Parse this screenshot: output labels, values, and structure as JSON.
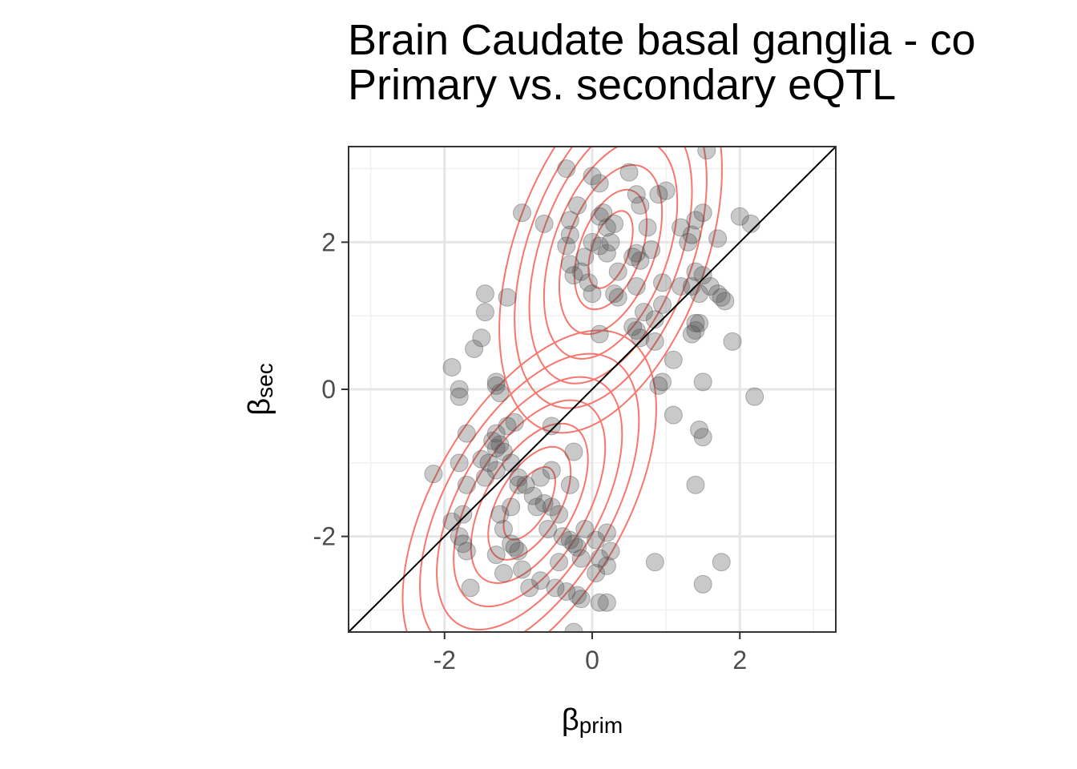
{
  "chart_data": {
    "type": "scatter",
    "title": [
      "Brain Caudate basal ganglia - co",
      "Primary vs. secondary eQTL"
    ],
    "xlabel": {
      "symbol": "β",
      "subscript": "prim"
    },
    "ylabel": {
      "symbol": "β",
      "subscript": "sec"
    },
    "xlim": [
      -3.3,
      3.3
    ],
    "ylim": [
      -3.3,
      3.3
    ],
    "xticks": [
      -2,
      0,
      2
    ],
    "yticks": [
      -2,
      0,
      2
    ],
    "xtick_labels": [
      "-2",
      "0",
      "2"
    ],
    "ytick_labels": [
      "-2",
      "0",
      "2"
    ],
    "grid": true,
    "reference_line": "y = x",
    "point_color": "#4d4d4d",
    "contour_color": "#f8766d",
    "density_contours": true,
    "points": [
      [
        -1.9,
        0.3
      ],
      [
        -1.8,
        0.0
      ],
      [
        -1.8,
        -0.1
      ],
      [
        -1.7,
        -0.6
      ],
      [
        -1.8,
        -1.0
      ],
      [
        -1.7,
        -1.3
      ],
      [
        -1.75,
        -1.7
      ],
      [
        -1.9,
        -1.8
      ],
      [
        -1.8,
        -2.0
      ],
      [
        -1.75,
        -2.1
      ],
      [
        -1.7,
        -2.2
      ],
      [
        -1.65,
        -2.7
      ],
      [
        -2.15,
        -1.15
      ],
      [
        -1.6,
        0.55
      ],
      [
        -1.5,
        0.7
      ],
      [
        -1.45,
        1.05
      ],
      [
        -1.45,
        1.3
      ],
      [
        -1.15,
        1.25
      ],
      [
        -1.3,
        0.1
      ],
      [
        -1.3,
        0.05
      ],
      [
        -1.25,
        -0.05
      ],
      [
        -1.35,
        -0.7
      ],
      [
        -1.3,
        -0.8
      ],
      [
        -1.25,
        -0.75
      ],
      [
        -1.2,
        -0.85
      ],
      [
        -1.3,
        -0.6
      ],
      [
        -1.4,
        -1.0
      ],
      [
        -1.45,
        -1.2
      ],
      [
        -1.3,
        -1.1
      ],
      [
        -1.1,
        -1.0
      ],
      [
        -1.0,
        -1.2
      ],
      [
        -1.0,
        -1.3
      ],
      [
        -0.9,
        -1.3
      ],
      [
        -1.15,
        -0.5
      ],
      [
        -1.05,
        -0.45
      ],
      [
        -0.55,
        -0.5
      ],
      [
        -1.25,
        -1.7
      ],
      [
        -1.1,
        -1.6
      ],
      [
        -1.2,
        -1.9
      ],
      [
        -1.1,
        -2.1
      ],
      [
        -1.05,
        -2.15
      ],
      [
        -1.0,
        -2.2
      ],
      [
        -1.2,
        -2.5
      ],
      [
        -1.3,
        -2.25
      ],
      [
        -0.95,
        -2.45
      ],
      [
        -0.85,
        -2.7
      ],
      [
        -0.7,
        -2.6
      ],
      [
        -0.5,
        -2.7
      ],
      [
        -0.35,
        -2.75
      ],
      [
        -0.2,
        -2.8
      ],
      [
        -0.15,
        -2.85
      ],
      [
        -0.25,
        -3.3
      ],
      [
        0.1,
        -2.9
      ],
      [
        0.2,
        -2.9
      ],
      [
        -0.7,
        -1.2
      ],
      [
        -0.55,
        -1.1
      ],
      [
        -0.3,
        -1.3
      ],
      [
        -0.55,
        -1.6
      ],
      [
        -0.45,
        -1.7
      ],
      [
        -0.65,
        -1.55
      ],
      [
        -0.4,
        -2.0
      ],
      [
        -0.3,
        -2.05
      ],
      [
        -0.25,
        -2.1
      ],
      [
        -0.2,
        -2.15
      ],
      [
        -0.15,
        -2.3
      ],
      [
        -0.45,
        -2.35
      ],
      [
        -0.1,
        -1.9
      ],
      [
        0.05,
        -2.05
      ],
      [
        0.1,
        -2.3
      ],
      [
        0.2,
        -1.95
      ],
      [
        0.25,
        -2.2
      ],
      [
        0.05,
        -2.5
      ],
      [
        0.2,
        -2.4
      ],
      [
        -0.25,
        -0.85
      ],
      [
        -0.8,
        -1.45
      ],
      [
        -0.75,
        -1.6
      ],
      [
        -0.6,
        -1.9
      ],
      [
        -1.5,
        -0.95
      ],
      [
        -0.95,
        2.4
      ],
      [
        -0.65,
        2.25
      ],
      [
        -0.35,
        3.0
      ],
      [
        -0.3,
        2.3
      ],
      [
        -0.2,
        2.5
      ],
      [
        -0.3,
        2.1
      ],
      [
        -0.35,
        1.95
      ],
      [
        -0.3,
        1.7
      ],
      [
        -0.25,
        1.55
      ],
      [
        -0.15,
        1.6
      ],
      [
        -0.05,
        1.45
      ],
      [
        0.0,
        1.3
      ],
      [
        0.0,
        2.9
      ],
      [
        0.1,
        2.8
      ],
      [
        0.1,
        2.35
      ],
      [
        0.15,
        2.4
      ],
      [
        0.2,
        2.2
      ],
      [
        0.25,
        2.0
      ],
      [
        0.3,
        2.25
      ],
      [
        0.2,
        1.85
      ],
      [
        0.1,
        1.95
      ],
      [
        0.0,
        2.0
      ],
      [
        -0.1,
        1.8
      ],
      [
        0.35,
        1.6
      ],
      [
        0.3,
        1.3
      ],
      [
        0.35,
        1.25
      ],
      [
        0.5,
        2.95
      ],
      [
        0.6,
        2.65
      ],
      [
        0.65,
        2.5
      ],
      [
        0.75,
        2.2
      ],
      [
        0.8,
        1.9
      ],
      [
        0.6,
        1.85
      ],
      [
        0.65,
        1.75
      ],
      [
        0.55,
        1.8
      ],
      [
        0.6,
        1.4
      ],
      [
        0.95,
        1.45
      ],
      [
        0.7,
        1.05
      ],
      [
        0.85,
        0.95
      ],
      [
        0.95,
        1.15
      ],
      [
        0.6,
        0.8
      ],
      [
        0.65,
        0.7
      ],
      [
        0.85,
        0.65
      ],
      [
        0.55,
        0.85
      ],
      [
        0.1,
        0.75
      ],
      [
        0.95,
        0.1
      ],
      [
        0.9,
        0.05
      ],
      [
        1.1,
        0.4
      ],
      [
        0.9,
        2.65
      ],
      [
        1.0,
        2.7
      ],
      [
        1.2,
        2.2
      ],
      [
        1.3,
        2.0
      ],
      [
        1.35,
        2.1
      ],
      [
        1.4,
        2.3
      ],
      [
        1.5,
        2.4
      ],
      [
        1.2,
        1.4
      ],
      [
        1.35,
        1.4
      ],
      [
        1.4,
        1.6
      ],
      [
        1.5,
        1.55
      ],
      [
        1.6,
        1.4
      ],
      [
        1.45,
        1.3
      ],
      [
        1.4,
        0.9
      ],
      [
        1.35,
        0.75
      ],
      [
        1.4,
        0.8
      ],
      [
        1.45,
        0.9
      ],
      [
        1.7,
        1.3
      ],
      [
        1.75,
        1.25
      ],
      [
        1.8,
        1.2
      ],
      [
        1.9,
        0.65
      ],
      [
        2.0,
        2.35
      ],
      [
        2.15,
        2.25
      ],
      [
        1.7,
        2.05
      ],
      [
        1.55,
        3.25
      ],
      [
        1.1,
        -0.35
      ],
      [
        1.5,
        0.1
      ],
      [
        1.5,
        -0.65
      ],
      [
        1.45,
        -0.55
      ],
      [
        1.4,
        -1.3
      ],
      [
        0.85,
        -2.35
      ],
      [
        1.75,
        -2.35
      ],
      [
        1.5,
        -2.65
      ],
      [
        2.2,
        -0.1
      ]
    ]
  }
}
